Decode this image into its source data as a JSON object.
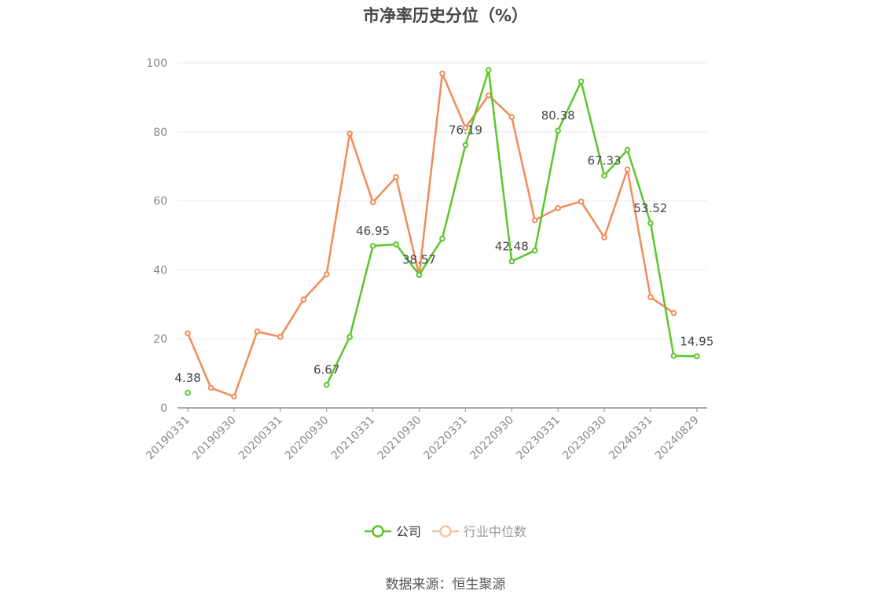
{
  "source": "数据来源：恒生聚源",
  "colors": {
    "company": "#5ac629",
    "industry": "#f08b56",
    "grid": "#e4e8f0",
    "axis": "#8c8c8c"
  },
  "chart_data": {
    "type": "line",
    "title": "市净率历史分位（%）",
    "xlabel": "",
    "ylabel": "",
    "ylim": [
      0,
      100
    ],
    "yticks": [
      0,
      20,
      40,
      60,
      80,
      100
    ],
    "grid": true,
    "legend_position": "bottom",
    "x": [
      "20190331",
      "20190630",
      "20190930",
      "20191231",
      "20200331",
      "20200630",
      "20200930",
      "20201231",
      "20210331",
      "20210630",
      "20210930",
      "20211231",
      "20220331",
      "20220630",
      "20220930",
      "20221231",
      "20230331",
      "20230630",
      "20230930",
      "20231231",
      "20240331",
      "20240630",
      "20240829"
    ],
    "x_tick_labels": [
      "20190331",
      "20190930",
      "20200331",
      "20200930",
      "20210331",
      "20210930",
      "20220331",
      "20220930",
      "20230331",
      "20230930",
      "20240331",
      "20240829"
    ],
    "series": [
      {
        "name": "公司",
        "values": [
          4.38,
          null,
          null,
          null,
          null,
          null,
          6.67,
          20.6,
          46.95,
          47.4,
          38.57,
          49.1,
          76.19,
          97.9,
          42.48,
          45.6,
          80.38,
          94.6,
          67.33,
          74.8,
          53.52,
          15.1,
          14.95
        ],
        "labels": [
          "4.38",
          null,
          null,
          null,
          null,
          null,
          "6.67",
          null,
          "46.95",
          null,
          "38.57",
          null,
          "76.19",
          null,
          "42.48",
          null,
          "80.38",
          null,
          "67.33",
          null,
          "53.52",
          null,
          "14.95"
        ]
      },
      {
        "name": "行业中位数",
        "values": [
          21.6,
          5.8,
          3.3,
          22.1,
          20.6,
          31.4,
          38.7,
          79.5,
          59.6,
          66.9,
          38.5,
          96.9,
          81.2,
          90.6,
          84.3,
          54.4,
          57.9,
          59.8,
          49.4,
          69.1,
          32.1,
          27.5,
          null
        ]
      }
    ]
  }
}
